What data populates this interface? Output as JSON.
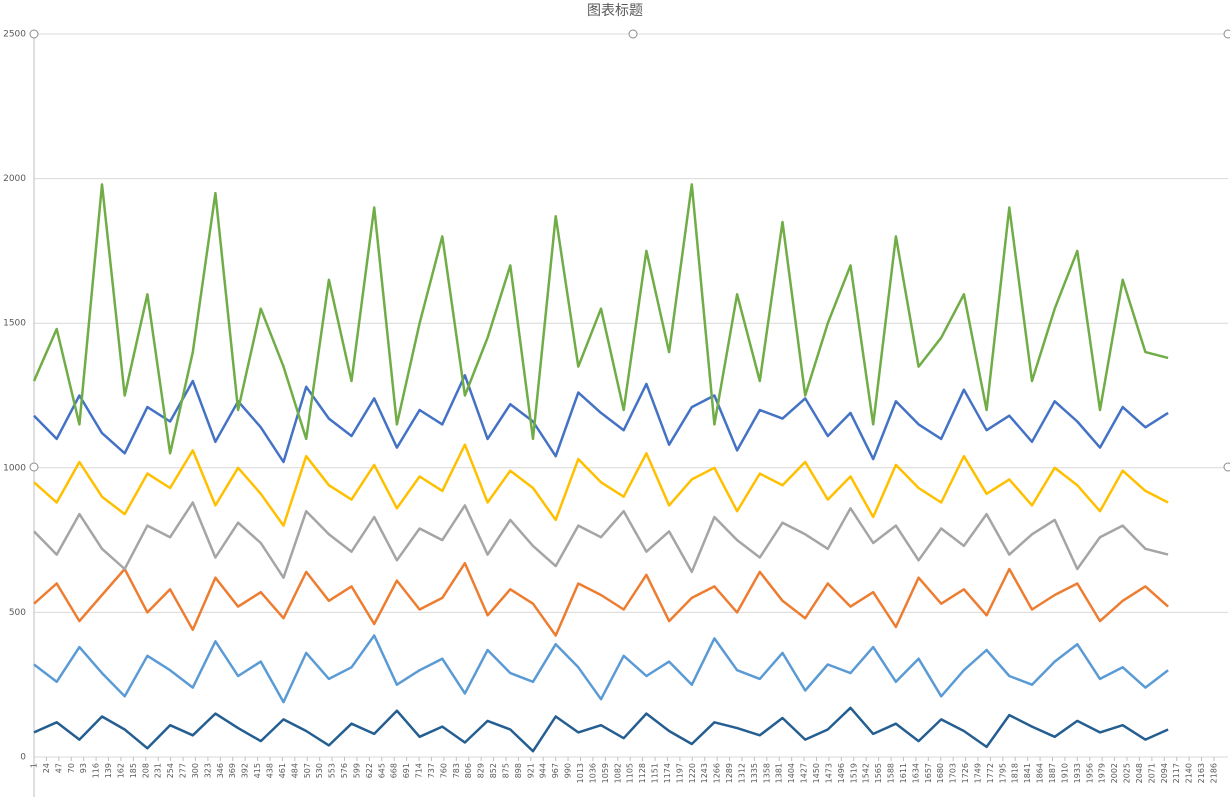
{
  "chart_data": {
    "type": "line",
    "title": "图表标题",
    "x": [
      1,
      43,
      85,
      127,
      169,
      211,
      253,
      295,
      337,
      379,
      421,
      463,
      505,
      547,
      589,
      631,
      673,
      715,
      757,
      799,
      841,
      883,
      925,
      967,
      1009,
      1051,
      1093,
      1135,
      1177,
      1219,
      1261,
      1303,
      1345,
      1387,
      1429,
      1471,
      1513,
      1555,
      1597,
      1639,
      1681,
      1723,
      1765,
      1807,
      1849,
      1891,
      1933,
      1975,
      2017,
      2059,
      2101
    ],
    "xlim": [
      1,
      2212
    ],
    "xticks": [
      1,
      24,
      47,
      70,
      93,
      116,
      139,
      162,
      185,
      208,
      231,
      254,
      277,
      300,
      323,
      346,
      369,
      392,
      415,
      438,
      461,
      484,
      507,
      530,
      553,
      576,
      599,
      622,
      645,
      668,
      691,
      714,
      737,
      760,
      783,
      806,
      829,
      852,
      875,
      898,
      921,
      944,
      967,
      990,
      1013,
      1036,
      1059,
      1082,
      1105,
      1128,
      1151,
      1174,
      1197,
      1220,
      1243,
      1266,
      1289,
      1312,
      1335,
      1358,
      1381,
      1404,
      1427,
      1450,
      1473,
      1496,
      1519,
      1542,
      1565,
      1588,
      1611,
      1634,
      1657,
      1680,
      1703,
      1726,
      1749,
      1772,
      1795,
      1818,
      1841,
      1864,
      1887,
      1910,
      1933,
      1956,
      1979,
      2002,
      2025,
      2048,
      2071,
      2094,
      2117,
      2140,
      2163,
      2186
    ],
    "ylim": [
      0,
      2500
    ],
    "yticks": [
      0,
      500,
      1000,
      1500,
      2000,
      2500
    ],
    "grid": true,
    "series": [
      {
        "color": "#255e91",
        "values": [
          85,
          120,
          60,
          140,
          95,
          30,
          110,
          75,
          150,
          100,
          55,
          130,
          90,
          40,
          115,
          80,
          160,
          70,
          105,
          50,
          125,
          95,
          20,
          140,
          85,
          110,
          65,
          150,
          90,
          45,
          120,
          100,
          75,
          135,
          60,
          95,
          170,
          80,
          115,
          55,
          130,
          90,
          35,
          145,
          105,
          70,
          125,
          85,
          110,
          60,
          95
        ]
      },
      {
        "color": "#5b9bd5",
        "values": [
          320,
          260,
          380,
          290,
          210,
          350,
          300,
          240,
          400,
          280,
          330,
          190,
          360,
          270,
          310,
          420,
          250,
          300,
          340,
          220,
          370,
          290,
          260,
          390,
          310,
          200,
          350,
          280,
          330,
          250,
          410,
          300,
          270,
          360,
          230,
          320,
          290,
          380,
          260,
          340,
          210,
          300,
          370,
          280,
          250,
          330,
          390,
          270,
          310,
          240,
          300
        ]
      },
      {
        "color": "#ed7d31",
        "values": [
          530,
          600,
          470,
          560,
          650,
          500,
          580,
          440,
          620,
          520,
          570,
          480,
          640,
          540,
          590,
          460,
          610,
          510,
          550,
          670,
          490,
          580,
          530,
          420,
          600,
          560,
          510,
          630,
          470,
          550,
          590,
          500,
          640,
          540,
          480,
          600,
          520,
          570,
          450,
          620,
          530,
          580,
          490,
          650,
          510,
          560,
          600,
          470,
          540,
          590,
          520
        ]
      },
      {
        "color": "#a5a5a5",
        "values": [
          780,
          700,
          840,
          720,
          650,
          800,
          760,
          880,
          690,
          810,
          740,
          620,
          850,
          770,
          710,
          830,
          680,
          790,
          750,
          870,
          700,
          820,
          730,
          660,
          800,
          760,
          850,
          710,
          780,
          640,
          830,
          750,
          690,
          810,
          770,
          720,
          860,
          740,
          800,
          680,
          790,
          730,
          840,
          700,
          770,
          820,
          650,
          760,
          800,
          720,
          700
        ]
      },
      {
        "color": "#ffc000",
        "values": [
          950,
          880,
          1020,
          900,
          840,
          980,
          930,
          1060,
          870,
          1000,
          910,
          800,
          1040,
          940,
          890,
          1010,
          860,
          970,
          920,
          1080,
          880,
          990,
          930,
          820,
          1030,
          950,
          900,
          1050,
          870,
          960,
          1000,
          850,
          980,
          940,
          1020,
          890,
          970,
          830,
          1010,
          930,
          880,
          1040,
          910,
          960,
          870,
          1000,
          940,
          850,
          990,
          920,
          880
        ]
      },
      {
        "color": "#4472c4",
        "values": [
          1180,
          1100,
          1250,
          1120,
          1050,
          1210,
          1160,
          1300,
          1090,
          1230,
          1140,
          1020,
          1280,
          1170,
          1110,
          1240,
          1070,
          1200,
          1150,
          1320,
          1100,
          1220,
          1160,
          1040,
          1260,
          1190,
          1130,
          1290,
          1080,
          1210,
          1250,
          1060,
          1200,
          1170,
          1240,
          1110,
          1190,
          1030,
          1230,
          1150,
          1100,
          1270,
          1130,
          1180,
          1090,
          1230,
          1160,
          1070,
          1210,
          1140,
          1190
        ]
      },
      {
        "color": "#70ad47",
        "values": [
          1300,
          1480,
          1150,
          1980,
          1250,
          1600,
          1050,
          1400,
          1950,
          1200,
          1550,
          1350,
          1100,
          1650,
          1300,
          1900,
          1150,
          1500,
          1800,
          1250,
          1450,
          1700,
          1100,
          1870,
          1350,
          1550,
          1200,
          1750,
          1400,
          1980,
          1150,
          1600,
          1300,
          1850,
          1250,
          1500,
          1700,
          1150,
          1800,
          1350,
          1450,
          1600,
          1200,
          1900,
          1300,
          1550,
          1750,
          1200,
          1650,
          1400,
          1380
        ]
      }
    ]
  }
}
